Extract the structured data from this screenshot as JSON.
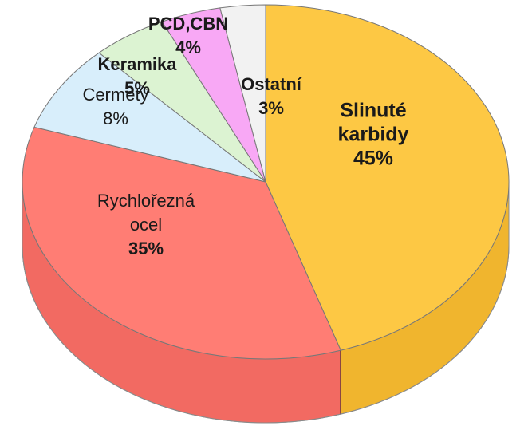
{
  "chart_data": {
    "type": "pie",
    "title": "",
    "slices": [
      {
        "label_lines": [
          "Slinuté",
          "karbidy"
        ],
        "value": 45,
        "percent_label": "45%",
        "color": "#FDC844",
        "side_color": "#F0B52E",
        "label_bold": true
      },
      {
        "label_lines": [
          "Rychlořezná",
          "ocel"
        ],
        "value": 35,
        "percent_label": "35%",
        "color": "#FF7D74",
        "side_color": "#F26A62",
        "label_bold": false
      },
      {
        "label_lines": [
          "Cermety"
        ],
        "value": 8,
        "percent_label": "8%",
        "color": "#D8EEFB",
        "side_color": "#C4E0F2",
        "label_bold": false
      },
      {
        "label_lines": [
          "Keramika"
        ],
        "value": 5,
        "percent_label": "5%",
        "color": "#DCF3D2",
        "side_color": "#C9E6BD",
        "label_bold": true
      },
      {
        "label_lines": [
          "PCD,CBN"
        ],
        "value": 4,
        "percent_label": "4%",
        "color": "#F8A8F5",
        "side_color": "#EC93E8",
        "label_bold": true
      },
      {
        "label_lines": [
          "Ostatní"
        ],
        "value": 3,
        "percent_label": "3%",
        "color": "#F2F2F2",
        "side_color": "#E2E2E2",
        "label_bold": true
      }
    ],
    "start_angle_deg": 0,
    "direction": "clockwise",
    "legend": "none",
    "style": "3d-pie"
  }
}
